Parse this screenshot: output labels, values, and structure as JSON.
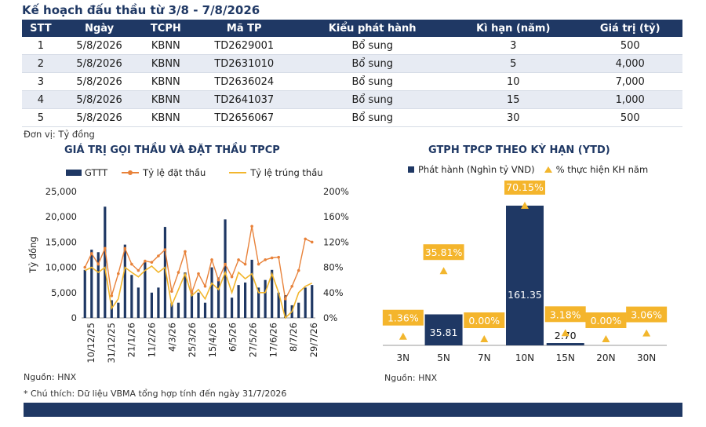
{
  "header": {
    "title": "Kế hoạch đấu thầu từ 3/8 - 7/8/2026"
  },
  "table": {
    "columns": [
      "STT",
      "Ngày",
      "TCPH",
      "Mã TP",
      "Kiểu phát hành",
      "Kì hạn (năm)",
      "Giá trị (tỷ)"
    ],
    "rows": [
      [
        "1",
        "5/8/2026",
        "KBNN",
        "TD2629001",
        "Bổ sung",
        "3",
        "500"
      ],
      [
        "2",
        "5/8/2026",
        "KBNN",
        "TD2631010",
        "Bổ sung",
        "5",
        "4,000"
      ],
      [
        "3",
        "5/8/2026",
        "KBNN",
        "TD2636024",
        "Bổ sung",
        "10",
        "7,000"
      ],
      [
        "4",
        "5/8/2026",
        "KBNN",
        "TD2641037",
        "Bổ sung",
        "15",
        "1,000"
      ],
      [
        "5",
        "5/8/2026",
        "KBNN",
        "TD2656067",
        "Bổ sung",
        "30",
        "500"
      ]
    ]
  },
  "unit_note": "Đơn vị: Tỷ đồng",
  "left_chart": {
    "source": "Nguồn: HNX"
  },
  "right_chart": {
    "source": "Nguồn: HNX"
  },
  "footnote": "* Chú thích: Dữ liệu VBMA tổng hợp tính đến ngày 31/7/2026",
  "colors": {
    "navy": "#1f3864",
    "orange": "#e8823a",
    "yellow": "#f2b62d",
    "label_bg": "#f4b52c"
  },
  "chart_data": [
    {
      "type": "bar",
      "title": "GIÁ TRỊ GỌI THẦU VÀ ĐẶT THẦU TPCP",
      "ylabel": "Tỷ đồng",
      "ylim": [
        0,
        25000
      ],
      "y2lim": [
        0,
        200
      ],
      "yticks": [
        "0",
        "5,000",
        "10,000",
        "15,000",
        "20,000",
        "25,000"
      ],
      "y2ticks": [
        "0%",
        "40%",
        "80%",
        "120%",
        "160%",
        "200%"
      ],
      "xtick_labels": [
        "10/12/25",
        "31/12/25",
        "21/1/26",
        "11/2/26",
        "4/3/26",
        "25/3/26",
        "15/4/26",
        "6/5/26",
        "27/5/26",
        "17/6/26",
        "8/7/26",
        "29/7/26"
      ],
      "legend": [
        "GTTT",
        "Tỷ lệ đặt thầu",
        "Tỷ lệ trúng thầu"
      ],
      "series": [
        {
          "name": "GTTT",
          "kind": "bar",
          "values": [
            9500,
            13500,
            13000,
            22000,
            3500,
            3000,
            14500,
            8500,
            6000,
            11000,
            5000,
            6000,
            18000,
            3000,
            3000,
            9000,
            5500,
            5000,
            3000,
            10000,
            8000,
            19500,
            4000,
            6500,
            7000,
            11500,
            6000,
            7500,
            9500,
            5000,
            4500,
            2500,
            3000,
            6000,
            6500
          ]
        },
        {
          "name": "Tỷ lệ đặt thầu",
          "kind": "line",
          "axis": "right",
          "values": [
            80,
            102,
            85,
            110,
            35,
            70,
            110,
            85,
            75,
            90,
            88,
            98,
            108,
            42,
            72,
            105,
            40,
            70,
            50,
            92,
            60,
            85,
            65,
            92,
            85,
            145,
            85,
            92,
            95,
            96,
            30,
            50,
            75,
            125,
            120
          ]
        },
        {
          "name": "Tỷ lệ trúng thầu",
          "kind": "line",
          "axis": "right",
          "values": [
            75,
            80,
            72,
            80,
            15,
            30,
            80,
            72,
            65,
            75,
            82,
            72,
            80,
            20,
            45,
            70,
            35,
            45,
            30,
            55,
            45,
            72,
            40,
            72,
            62,
            70,
            40,
            40,
            70,
            40,
            0,
            10,
            40,
            50,
            55
          ]
        }
      ]
    },
    {
      "type": "bar",
      "title": "GTPH TPCP THEO KỲ HẠN (YTD)",
      "categories": [
        "3N",
        "5N",
        "7N",
        "10N",
        "15N",
        "20N",
        "30N"
      ],
      "legend": [
        "Phát hành (Nghìn tỷ VND)",
        "% thực hiện KH năm"
      ],
      "series": [
        {
          "name": "Phát hành (Nghìn tỷ VND)",
          "kind": "bar",
          "values": [
            0,
            35.81,
            0,
            161.35,
            2.7,
            0,
            0
          ],
          "labels": [
            "",
            "35.81",
            "",
            "161.35",
            "2.70",
            "",
            ""
          ]
        },
        {
          "name": "% thực hiện KH năm",
          "kind": "marker",
          "values": [
            1.36,
            35.81,
            0.0,
            70.15,
            3.18,
            0.0,
            3.06
          ],
          "labels": [
            "1.36%",
            "35.81%",
            "0.00%",
            "70.15%",
            "3.18%",
            "0.00%",
            "3.06%"
          ]
        }
      ]
    }
  ]
}
